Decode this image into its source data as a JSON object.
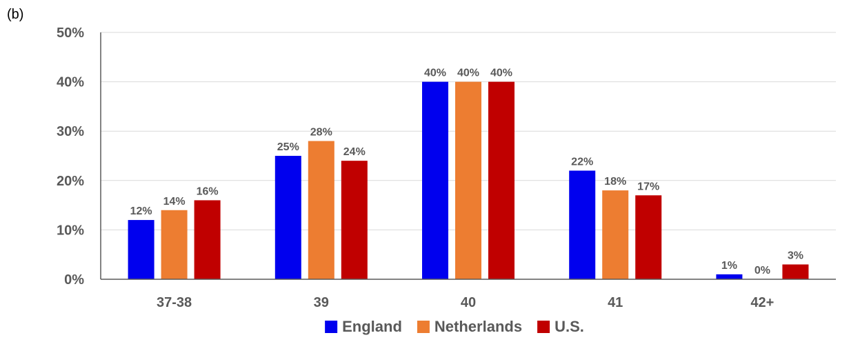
{
  "panel_label": "(b)",
  "chart_data": {
    "type": "bar",
    "title": "",
    "xlabel": "",
    "ylabel": "",
    "categories": [
      "37-38",
      "39",
      "40",
      "41",
      "42+"
    ],
    "series": [
      {
        "name": "England",
        "color": "#0000EE",
        "values": [
          12,
          25,
          40,
          22,
          1
        ],
        "labels": [
          "12%",
          "25%",
          "40%",
          "22%",
          "1%"
        ]
      },
      {
        "name": "Netherlands",
        "color": "#ED7D31",
        "values": [
          14,
          28,
          40,
          18,
          0
        ],
        "labels": [
          "14%",
          "28%",
          "40%",
          "18%",
          "0%"
        ]
      },
      {
        "name": "U.S.",
        "color": "#C00000",
        "values": [
          16,
          24,
          40,
          17,
          3
        ],
        "labels": [
          "16%",
          "24%",
          "40%",
          "17%",
          "3%"
        ]
      }
    ],
    "ylim": [
      0,
      50
    ],
    "yticks": [
      0,
      10,
      20,
      30,
      40,
      50
    ],
    "ytick_labels": [
      "0%",
      "10%",
      "20%",
      "30%",
      "40%",
      "50%"
    ],
    "grid": "horizontal",
    "legend_position": "bottom"
  }
}
